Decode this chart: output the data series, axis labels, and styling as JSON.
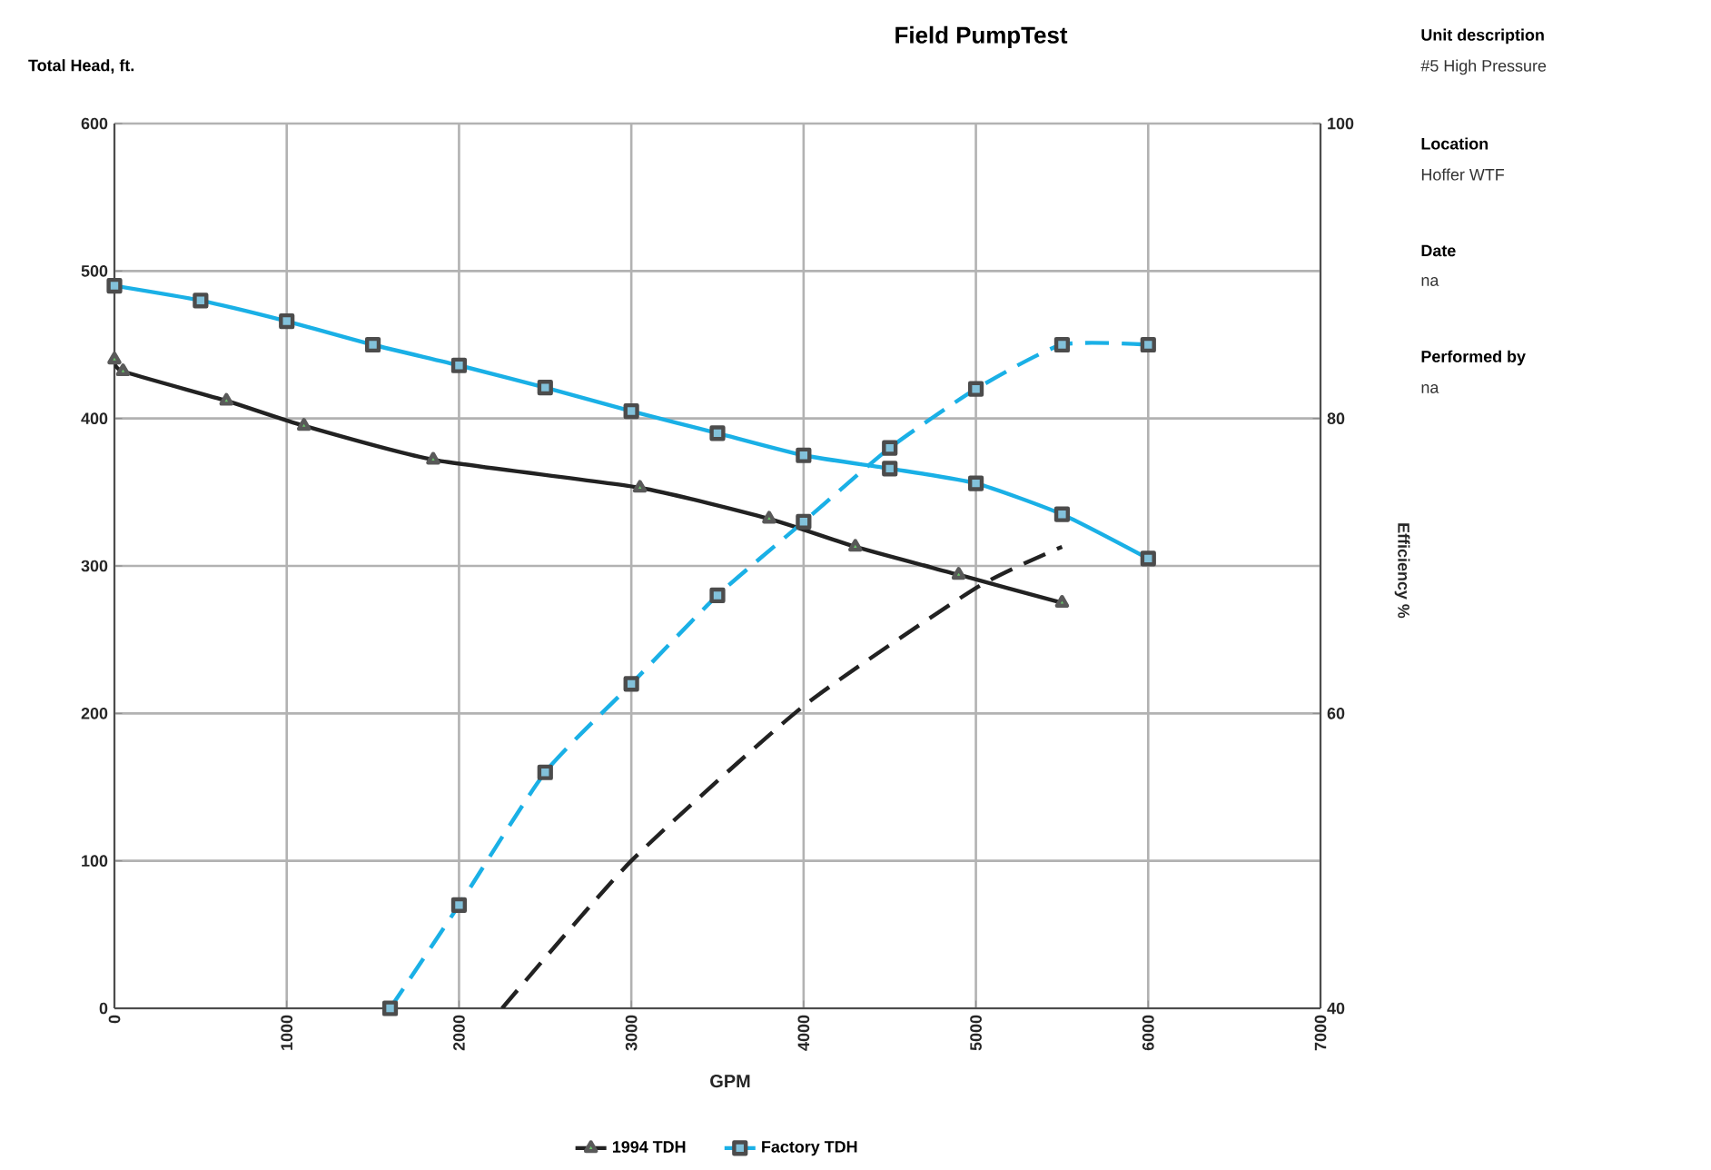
{
  "chart_data": {
    "type": "line",
    "title": "Field PumpTest",
    "xlabel": "GPM",
    "ylabel": "Total Head, ft.",
    "y2label": "Efficiency %",
    "xlim": [
      0,
      7000
    ],
    "xticks": [
      0,
      1000,
      2000,
      3000,
      4000,
      5000,
      6000,
      7000
    ],
    "ylim": [
      0,
      600
    ],
    "yticks": [
      0,
      100,
      200,
      300,
      400,
      500,
      600
    ],
    "y2lim": [
      40,
      100
    ],
    "y2ticks": [
      40,
      60,
      80,
      100
    ],
    "grid": true,
    "legend": "bottom",
    "series": [
      {
        "name": "1994 TDH",
        "color": "#222222",
        "marker": "triangle",
        "line_style": "solid",
        "x": [
          0,
          50,
          650,
          1100,
          1850,
          3050,
          3800,
          4300,
          4900,
          5500
        ],
        "values": [
          440,
          432,
          412,
          395,
          372,
          353,
          332,
          313,
          294,
          275
        ]
      },
      {
        "name": "Factory TDH",
        "color": "#1ab0e6",
        "marker": "square",
        "line_style": "solid",
        "x": [
          0,
          500,
          1000,
          1500,
          2000,
          2500,
          3000,
          3500,
          4000,
          4500,
          5000,
          5500,
          6000
        ],
        "values": [
          490,
          480,
          466,
          450,
          436,
          421,
          405,
          390,
          375,
          366,
          356,
          335,
          305
        ]
      },
      {
        "color": "#222222",
        "axis": "y2",
        "marker": "none",
        "line_style": "dashed",
        "x": [
          2250,
          3000,
          4000,
          5000,
          5500
        ],
        "values": [
          40,
          50,
          60.5,
          68.5,
          71.3
        ]
      },
      {
        "color": "#1ab0e6",
        "axis": "y2",
        "marker": "square",
        "line_style": "dashed",
        "x": [
          1600,
          2000,
          2500,
          3000,
          3500,
          4000,
          4500,
          5000,
          5500,
          6000
        ],
        "values": [
          40,
          47,
          56,
          62,
          68,
          73,
          78,
          82,
          85,
          85
        ]
      }
    ],
    "annotations": [
      "Unit description",
      "#5 High Pressure",
      "Location",
      "Hoffer WTF",
      "Date",
      "na",
      "Performed by",
      "na"
    ]
  }
}
